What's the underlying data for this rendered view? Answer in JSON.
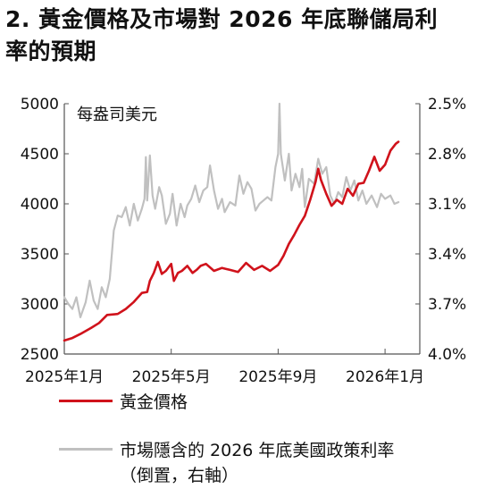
{
  "title": {
    "line1": "2. 黃金價格及市場對 2026 年底聯儲局利",
    "line2": "率的預期"
  },
  "colors": {
    "gold_series": "#d0121b",
    "rate_series": "#c0c0c0",
    "axis": "#555555",
    "text": "#111111"
  },
  "chart_data": {
    "type": "line",
    "unit_label": "每盎司美元",
    "x_ticks": [
      "2025年1月",
      "2025年5月",
      "2025年9月",
      "2026年1月"
    ],
    "x_tick_positions": [
      0,
      4,
      8,
      12
    ],
    "x_range": [
      0,
      13.3
    ],
    "y_left": {
      "range": [
        2500,
        5000
      ],
      "ticks": [
        2500,
        3000,
        3500,
        4000,
        4500,
        5000
      ]
    },
    "y_right": {
      "range_top_to_bottom": [
        2.5,
        4.0
      ],
      "inverted": true,
      "ticks": [
        "2.5%",
        "2.8%",
        "3.1%",
        "3.4%",
        "3.7%",
        "4.0%"
      ],
      "tick_values": [
        2.5,
        2.8,
        3.1,
        3.4,
        3.7,
        4.0
      ]
    },
    "series": [
      {
        "name": "黃金價格",
        "axis": "left",
        "color": "#d0121b",
        "points": [
          [
            0.0,
            2635
          ],
          [
            0.3,
            2660
          ],
          [
            0.6,
            2700
          ],
          [
            1.0,
            2760
          ],
          [
            1.3,
            2810
          ],
          [
            1.6,
            2890
          ],
          [
            2.0,
            2900
          ],
          [
            2.3,
            2950
          ],
          [
            2.6,
            3020
          ],
          [
            2.9,
            3110
          ],
          [
            3.1,
            3120
          ],
          [
            3.2,
            3230
          ],
          [
            3.35,
            3310
          ],
          [
            3.5,
            3420
          ],
          [
            3.65,
            3300
          ],
          [
            3.8,
            3330
          ],
          [
            4.0,
            3400
          ],
          [
            4.1,
            3230
          ],
          [
            4.25,
            3310
          ],
          [
            4.4,
            3330
          ],
          [
            4.6,
            3380
          ],
          [
            4.8,
            3310
          ],
          [
            4.95,
            3340
          ],
          [
            5.1,
            3380
          ],
          [
            5.3,
            3400
          ],
          [
            5.6,
            3330
          ],
          [
            5.9,
            3360
          ],
          [
            6.2,
            3340
          ],
          [
            6.5,
            3320
          ],
          [
            6.8,
            3410
          ],
          [
            7.1,
            3340
          ],
          [
            7.4,
            3380
          ],
          [
            7.7,
            3330
          ],
          [
            8.0,
            3390
          ],
          [
            8.2,
            3480
          ],
          [
            8.4,
            3600
          ],
          [
            8.6,
            3690
          ],
          [
            8.8,
            3790
          ],
          [
            9.0,
            3880
          ],
          [
            9.2,
            4040
          ],
          [
            9.4,
            4220
          ],
          [
            9.5,
            4350
          ],
          [
            9.6,
            4240
          ],
          [
            9.8,
            4100
          ],
          [
            10.0,
            3980
          ],
          [
            10.2,
            4040
          ],
          [
            10.4,
            4000
          ],
          [
            10.6,
            4150
          ],
          [
            10.8,
            4080
          ],
          [
            11.0,
            4200
          ],
          [
            11.2,
            4210
          ],
          [
            11.4,
            4330
          ],
          [
            11.6,
            4470
          ],
          [
            11.8,
            4330
          ],
          [
            12.0,
            4390
          ],
          [
            12.2,
            4530
          ],
          [
            12.4,
            4600
          ],
          [
            12.5,
            4620
          ]
        ]
      },
      {
        "name": "市場隱含的 2026 年底美國政策利率",
        "axis": "right",
        "color": "#c0c0c0",
        "points": [
          [
            0.0,
            3.66
          ],
          [
            0.15,
            3.7
          ],
          [
            0.3,
            3.73
          ],
          [
            0.45,
            3.66
          ],
          [
            0.6,
            3.78
          ],
          [
            0.8,
            3.69
          ],
          [
            0.95,
            3.56
          ],
          [
            1.1,
            3.68
          ],
          [
            1.25,
            3.73
          ],
          [
            1.4,
            3.6
          ],
          [
            1.55,
            3.66
          ],
          [
            1.7,
            3.55
          ],
          [
            1.85,
            3.26
          ],
          [
            2.0,
            3.17
          ],
          [
            2.15,
            3.18
          ],
          [
            2.3,
            3.12
          ],
          [
            2.45,
            3.23
          ],
          [
            2.6,
            3.1
          ],
          [
            2.75,
            3.2
          ],
          [
            2.9,
            3.13
          ],
          [
            3.0,
            3.07
          ],
          [
            3.05,
            2.82
          ],
          [
            3.1,
            3.08
          ],
          [
            3.2,
            2.81
          ],
          [
            3.3,
            3.05
          ],
          [
            3.4,
            3.13
          ],
          [
            3.55,
            3.0
          ],
          [
            3.65,
            3.05
          ],
          [
            3.8,
            3.22
          ],
          [
            3.95,
            3.16
          ],
          [
            4.05,
            3.04
          ],
          [
            4.2,
            3.23
          ],
          [
            4.35,
            3.1
          ],
          [
            4.5,
            3.18
          ],
          [
            4.6,
            3.11
          ],
          [
            4.75,
            3.07
          ],
          [
            4.9,
            2.99
          ],
          [
            5.05,
            3.09
          ],
          [
            5.2,
            3.02
          ],
          [
            5.35,
            3.0
          ],
          [
            5.45,
            2.87
          ],
          [
            5.6,
            3.02
          ],
          [
            5.75,
            3.13
          ],
          [
            5.9,
            3.07
          ],
          [
            6.0,
            3.15
          ],
          [
            6.2,
            3.09
          ],
          [
            6.4,
            3.11
          ],
          [
            6.55,
            2.93
          ],
          [
            6.7,
            3.04
          ],
          [
            6.85,
            2.97
          ],
          [
            7.0,
            3.01
          ],
          [
            7.15,
            3.14
          ],
          [
            7.3,
            3.1
          ],
          [
            7.45,
            3.08
          ],
          [
            7.6,
            3.06
          ],
          [
            7.75,
            3.08
          ],
          [
            7.9,
            2.88
          ],
          [
            8.0,
            2.8
          ],
          [
            8.05,
            2.5
          ],
          [
            8.1,
            2.8
          ],
          [
            8.25,
            2.96
          ],
          [
            8.4,
            2.8
          ],
          [
            8.5,
            3.02
          ],
          [
            8.65,
            2.92
          ],
          [
            8.8,
            3.0
          ],
          [
            8.9,
            2.89
          ],
          [
            9.0,
            3.12
          ],
          [
            9.15,
            2.95
          ],
          [
            9.35,
            2.98
          ],
          [
            9.5,
            2.83
          ],
          [
            9.65,
            2.92
          ],
          [
            9.8,
            2.88
          ],
          [
            9.95,
            3.05
          ],
          [
            10.1,
            3.1
          ],
          [
            10.25,
            3.03
          ],
          [
            10.4,
            3.06
          ],
          [
            10.55,
            2.94
          ],
          [
            10.7,
            3.02
          ],
          [
            10.85,
            2.96
          ],
          [
            11.0,
            3.08
          ],
          [
            11.15,
            3.02
          ],
          [
            11.3,
            3.1
          ],
          [
            11.5,
            3.05
          ],
          [
            11.7,
            3.12
          ],
          [
            11.85,
            3.04
          ],
          [
            12.0,
            3.07
          ],
          [
            12.2,
            3.05
          ],
          [
            12.35,
            3.1
          ],
          [
            12.5,
            3.09
          ]
        ]
      }
    ]
  },
  "legend": {
    "gold_label": "黃金價格",
    "rate_label_line1": "市場隱含的 2026 年底美國政策利率",
    "rate_label_line2": "（倒置，右軸）"
  }
}
